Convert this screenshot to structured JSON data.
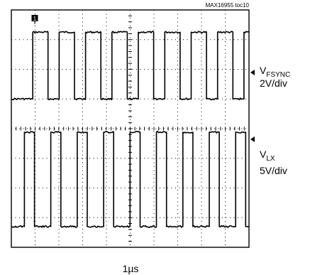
{
  "chart_data": {
    "type": "line",
    "caption": "MAX16955 toc10",
    "timebase": "1µs",
    "grid": {
      "h_divisions": 10,
      "v_divisions": 8
    },
    "channels": [
      {
        "name_main": "V",
        "name_sub": "FSYNC",
        "scale": "2V/div",
        "marker": "1",
        "pulse_periods": 9,
        "duty_high": 0.58
      },
      {
        "name_main": "V",
        "name_sub": "LX",
        "scale": "5V/div",
        "pulse_periods": 9,
        "duty_high": 0.38
      }
    ]
  }
}
